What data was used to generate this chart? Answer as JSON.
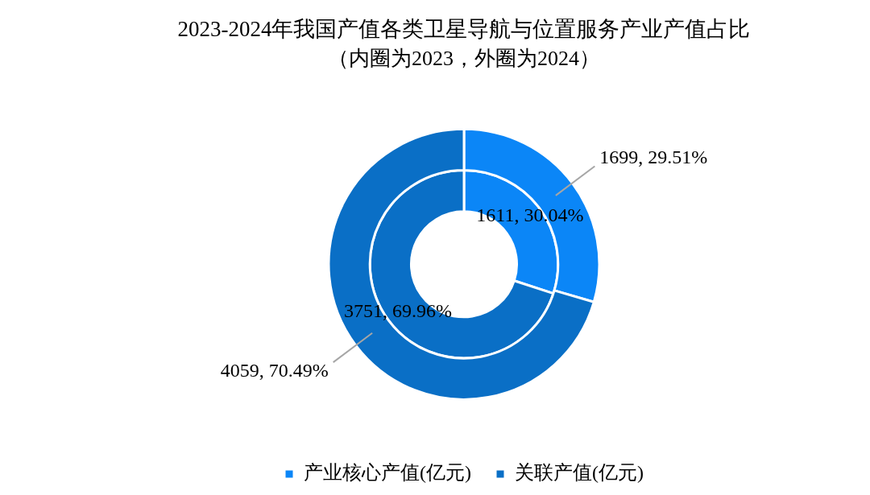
{
  "chart_data": {
    "type": "donut",
    "title": "2023-2024年我国产值各类卫星导航与位置服务产业产值占比",
    "subtitle": "（内圈为2023，外圈为2024）",
    "categories": [
      "产业核心产值(亿元)",
      "关联产值(亿元)"
    ],
    "colors": [
      "#0b86f7",
      "#0a6fc6"
    ],
    "series": [
      {
        "values": [
          1699,
          4059
        ],
        "value_labels": [
          "1699, 29.51%",
          "4059, 70.49%"
        ]
      },
      {
        "values": [
          1611,
          3751
        ],
        "value_labels": [
          "1611, 30.04%",
          "3751, 69.96%"
        ]
      }
    ],
    "legend": "bottom"
  }
}
